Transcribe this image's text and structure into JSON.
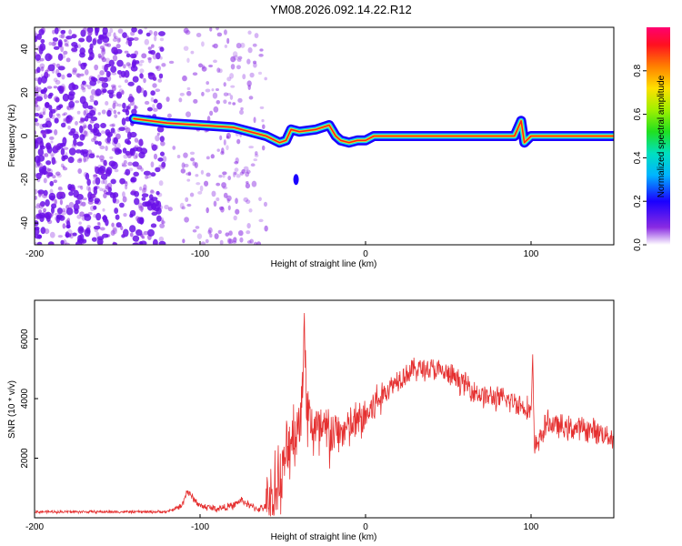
{
  "title": "YM08.2026.092.14.22.R12",
  "colors": {
    "snr_line": "#e53030",
    "noise": "#8a2be2",
    "trace_outer": "#1a00ff",
    "trace_mid": "#18e0e0",
    "trace_inner": "#ff2020"
  },
  "chart_data": [
    {
      "type": "heatmap",
      "name": "spectrogram",
      "xlabel": "Height of straight line (km)",
      "ylabel": "Frequency (Hz)",
      "xlim": [
        -200,
        150
      ],
      "ylim": [
        -50,
        50
      ],
      "xticks": [
        -200,
        -100,
        0,
        100
      ],
      "yticks": [
        -40,
        -20,
        0,
        20,
        40
      ],
      "colorbar": {
        "label": "Normalized spectral amplitude",
        "range": [
          0,
          1
        ],
        "ticks": [
          "0.0",
          "0.2",
          "0.4",
          "0.6",
          "0.8"
        ]
      },
      "noise_region_km": [
        -200,
        -60
      ],
      "dominant_frequency_trace": {
        "x": [
          -140,
          -120,
          -100,
          -80,
          -70,
          -60,
          -52,
          -48,
          -45,
          -40,
          -30,
          -22,
          -18,
          -15,
          -10,
          -5,
          0,
          5,
          10,
          50,
          90,
          94,
          96,
          100,
          150
        ],
        "y": [
          8,
          6,
          5,
          4,
          2,
          0,
          -3,
          -2,
          3,
          2,
          3,
          5,
          0,
          -2,
          -3,
          -2,
          -2,
          0,
          0,
          0,
          0,
          7,
          -3,
          0,
          0
        ]
      }
    },
    {
      "type": "line",
      "name": "snr",
      "xlabel": "Height of straight line (km)",
      "ylabel": "SNR (10 * v/v)",
      "xlim": [
        -200,
        150
      ],
      "ylim": [
        0,
        7300
      ],
      "xticks": [
        -200,
        -100,
        0,
        100
      ],
      "yticks": [
        2000,
        4000,
        6000
      ],
      "envelope": {
        "x": [
          -200,
          -120,
          -111,
          -108,
          -100,
          -90,
          -80,
          -75,
          -70,
          -65,
          -60,
          -50,
          -45,
          -40,
          -37,
          -35,
          -30,
          -20,
          -10,
          0,
          10,
          20,
          30,
          40,
          50,
          60,
          70,
          80,
          90,
          100,
          101,
          102,
          110,
          120,
          130,
          140,
          150
        ],
        "y": [
          200,
          200,
          400,
          900,
          400,
          300,
          400,
          600,
          400,
          300,
          350,
          1500,
          2800,
          3000,
          6000,
          3500,
          2800,
          2800,
          3000,
          3400,
          4100,
          4700,
          5000,
          5000,
          4800,
          4500,
          4100,
          4000,
          3900,
          3600,
          5200,
          2300,
          3200,
          3000,
          3000,
          2900,
          2700
        ]
      }
    }
  ]
}
